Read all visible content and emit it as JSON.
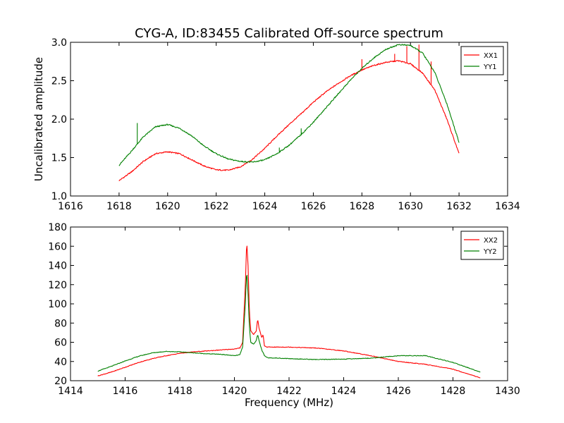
{
  "chart_data": [
    {
      "type": "line",
      "title": "CYG-A, ID:83455 Calibrated Off-source spectrum",
      "xlabel": "",
      "ylabel": "Uncalibrated amplitude",
      "xlim": [
        1616,
        1634
      ],
      "ylim": [
        1.0,
        3.0
      ],
      "xticks": [
        1616,
        1618,
        1620,
        1622,
        1624,
        1626,
        1628,
        1630,
        1632,
        1634
      ],
      "yticks": [
        1.0,
        1.5,
        2.0,
        2.5,
        3.0
      ],
      "grid": false,
      "legend": "top-right",
      "series": [
        {
          "name": "XX1",
          "color": "#ff0000",
          "points": [
            [
              1618.0,
              1.2
            ],
            [
              1618.5,
              1.31
            ],
            [
              1619.0,
              1.45
            ],
            [
              1619.5,
              1.55
            ],
            [
              1620.0,
              1.575
            ],
            [
              1620.5,
              1.55
            ],
            [
              1621.0,
              1.47
            ],
            [
              1621.5,
              1.39
            ],
            [
              1622.0,
              1.34
            ],
            [
              1622.5,
              1.335
            ],
            [
              1623.0,
              1.38
            ],
            [
              1623.5,
              1.48
            ],
            [
              1624.0,
              1.62
            ],
            [
              1624.5,
              1.78
            ],
            [
              1625.0,
              1.93
            ],
            [
              1625.5,
              2.07
            ],
            [
              1626.0,
              2.22
            ],
            [
              1626.5,
              2.35
            ],
            [
              1627.0,
              2.46
            ],
            [
              1627.5,
              2.56
            ],
            [
              1628.0,
              2.64
            ],
            [
              1628.5,
              2.7
            ],
            [
              1629.0,
              2.74
            ],
            [
              1629.5,
              2.76
            ],
            [
              1630.0,
              2.72
            ],
            [
              1630.5,
              2.6
            ],
            [
              1631.0,
              2.38
            ],
            [
              1631.5,
              2.0
            ],
            [
              1632.0,
              1.55
            ]
          ],
          "spikes": [
            [
              1628.0,
              2.78
            ],
            [
              1629.35,
              2.85
            ],
            [
              1629.85,
              2.95
            ],
            [
              1630.35,
              2.97
            ],
            [
              1630.85,
              2.75
            ]
          ]
        },
        {
          "name": "YY1",
          "color": "#008000",
          "points": [
            [
              1618.0,
              1.4
            ],
            [
              1618.5,
              1.58
            ],
            [
              1619.0,
              1.77
            ],
            [
              1619.5,
              1.9
            ],
            [
              1620.0,
              1.93
            ],
            [
              1620.5,
              1.88
            ],
            [
              1621.0,
              1.78
            ],
            [
              1621.5,
              1.65
            ],
            [
              1622.0,
              1.55
            ],
            [
              1622.5,
              1.48
            ],
            [
              1623.0,
              1.45
            ],
            [
              1623.5,
              1.44
            ],
            [
              1624.0,
              1.47
            ],
            [
              1624.5,
              1.55
            ],
            [
              1625.0,
              1.66
            ],
            [
              1625.5,
              1.8
            ],
            [
              1626.0,
              1.96
            ],
            [
              1626.5,
              2.14
            ],
            [
              1627.0,
              2.32
            ],
            [
              1627.5,
              2.5
            ],
            [
              1628.0,
              2.66
            ],
            [
              1628.5,
              2.8
            ],
            [
              1629.0,
              2.91
            ],
            [
              1629.5,
              2.97
            ],
            [
              1630.0,
              2.96
            ],
            [
              1630.5,
              2.86
            ],
            [
              1631.0,
              2.61
            ],
            [
              1631.5,
              2.2
            ],
            [
              1632.0,
              1.7
            ]
          ],
          "spikes": [
            [
              1618.75,
              1.95
            ],
            [
              1624.6,
              1.63
            ],
            [
              1625.5,
              1.88
            ]
          ]
        }
      ]
    },
    {
      "type": "line",
      "title": "",
      "xlabel": "Frequency (MHz)",
      "ylabel": "",
      "xlim": [
        1414,
        1430
      ],
      "ylim": [
        20,
        180
      ],
      "xticks": [
        1414,
        1416,
        1418,
        1420,
        1422,
        1424,
        1426,
        1428,
        1430
      ],
      "yticks": [
        20,
        40,
        60,
        80,
        100,
        120,
        140,
        160,
        180
      ],
      "grid": false,
      "legend": "top-right",
      "series": [
        {
          "name": "XX2",
          "color": "#ff0000",
          "points": [
            [
              1415.0,
              25
            ],
            [
              1415.5,
              29
            ],
            [
              1416.0,
              34
            ],
            [
              1416.5,
              39
            ],
            [
              1417.0,
              43
            ],
            [
              1417.5,
              46
            ],
            [
              1418.0,
              48.5
            ],
            [
              1418.5,
              50
            ],
            [
              1419.0,
              51
            ],
            [
              1419.5,
              52
            ],
            [
              1420.0,
              53
            ],
            [
              1420.2,
              54
            ],
            [
              1420.3,
              60
            ],
            [
              1420.4,
              120
            ],
            [
              1420.45,
              165
            ],
            [
              1420.5,
              140
            ],
            [
              1420.55,
              90
            ],
            [
              1420.6,
              72
            ],
            [
              1420.7,
              68
            ],
            [
              1420.8,
              72
            ],
            [
              1420.85,
              84
            ],
            [
              1420.9,
              75
            ],
            [
              1421.0,
              65
            ],
            [
              1421.05,
              68
            ],
            [
              1421.1,
              56
            ],
            [
              1421.2,
              55
            ],
            [
              1422.0,
              55
            ],
            [
              1423.0,
              54
            ],
            [
              1424.0,
              51
            ],
            [
              1425.0,
              46
            ],
            [
              1426.0,
              40
            ],
            [
              1427.0,
              37
            ],
            [
              1428.0,
              32
            ],
            [
              1429.0,
              23
            ]
          ]
        },
        {
          "name": "YY2",
          "color": "#008000",
          "points": [
            [
              1415.0,
              30
            ],
            [
              1415.5,
              35
            ],
            [
              1416.0,
              40.5
            ],
            [
              1416.5,
              45.5
            ],
            [
              1417.0,
              49
            ],
            [
              1417.5,
              50.5
            ],
            [
              1418.0,
              50
            ],
            [
              1418.5,
              49
            ],
            [
              1419.0,
              48
            ],
            [
              1419.5,
              47.5
            ],
            [
              1420.0,
              46
            ],
            [
              1420.2,
              47
            ],
            [
              1420.3,
              55
            ],
            [
              1420.4,
              100
            ],
            [
              1420.45,
              135
            ],
            [
              1420.5,
              110
            ],
            [
              1420.55,
              75
            ],
            [
              1420.6,
              60
            ],
            [
              1420.7,
              58
            ],
            [
              1420.8,
              62
            ],
            [
              1420.85,
              68
            ],
            [
              1420.9,
              62
            ],
            [
              1421.0,
              52
            ],
            [
              1421.1,
              46
            ],
            [
              1421.2,
              44
            ],
            [
              1422.0,
              43
            ],
            [
              1423.0,
              42
            ],
            [
              1424.0,
              42.5
            ],
            [
              1425.0,
              43.5
            ],
            [
              1426.0,
              46
            ],
            [
              1427.0,
              46
            ],
            [
              1428.0,
              39
            ],
            [
              1429.0,
              29
            ]
          ]
        }
      ]
    }
  ]
}
